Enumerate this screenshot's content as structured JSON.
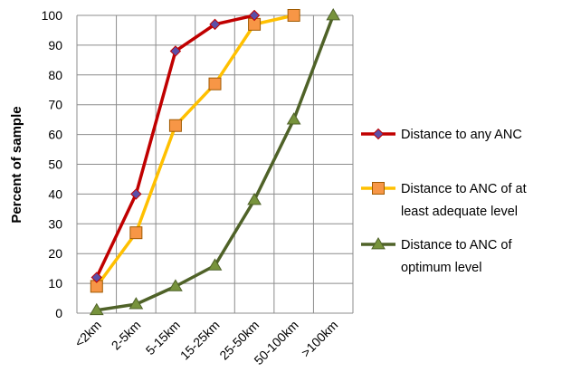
{
  "chart_data": {
    "type": "line",
    "ylabel": "Percent of sample",
    "xlabel": "",
    "categories": [
      "<2km",
      "2-5km",
      "5-15km",
      "15-25km",
      "25-50km",
      "50-100km",
      ">100km"
    ],
    "ylim": [
      0,
      100
    ],
    "yticks": [
      0,
      10,
      20,
      30,
      40,
      50,
      60,
      70,
      80,
      90,
      100
    ],
    "grid": true,
    "legend_position": "right",
    "series": [
      {
        "name": "Distance to any ANC",
        "name_lines": [
          "Distance to any ANC"
        ],
        "marker": "diamond",
        "color": "#c00000",
        "marker_color": "#5b4fa8",
        "values": [
          12,
          40,
          88,
          97,
          100,
          null,
          null
        ]
      },
      {
        "name": "Distance to ANC of at least adequate level",
        "name_lines": [
          "Distance to ANC of at",
          "least adequate level"
        ],
        "marker": "square",
        "color": "#ffc000",
        "marker_color": "#f79646",
        "values": [
          9,
          27,
          63,
          77,
          97,
          100,
          null
        ]
      },
      {
        "name": "Distance to ANC of optimum level",
        "name_lines": [
          "Distance to ANC of",
          "optimum level"
        ],
        "marker": "triangle",
        "color": "#4f6228",
        "marker_color": "#77933c",
        "values": [
          1,
          3,
          9,
          16,
          38,
          65,
          100
        ]
      }
    ]
  }
}
